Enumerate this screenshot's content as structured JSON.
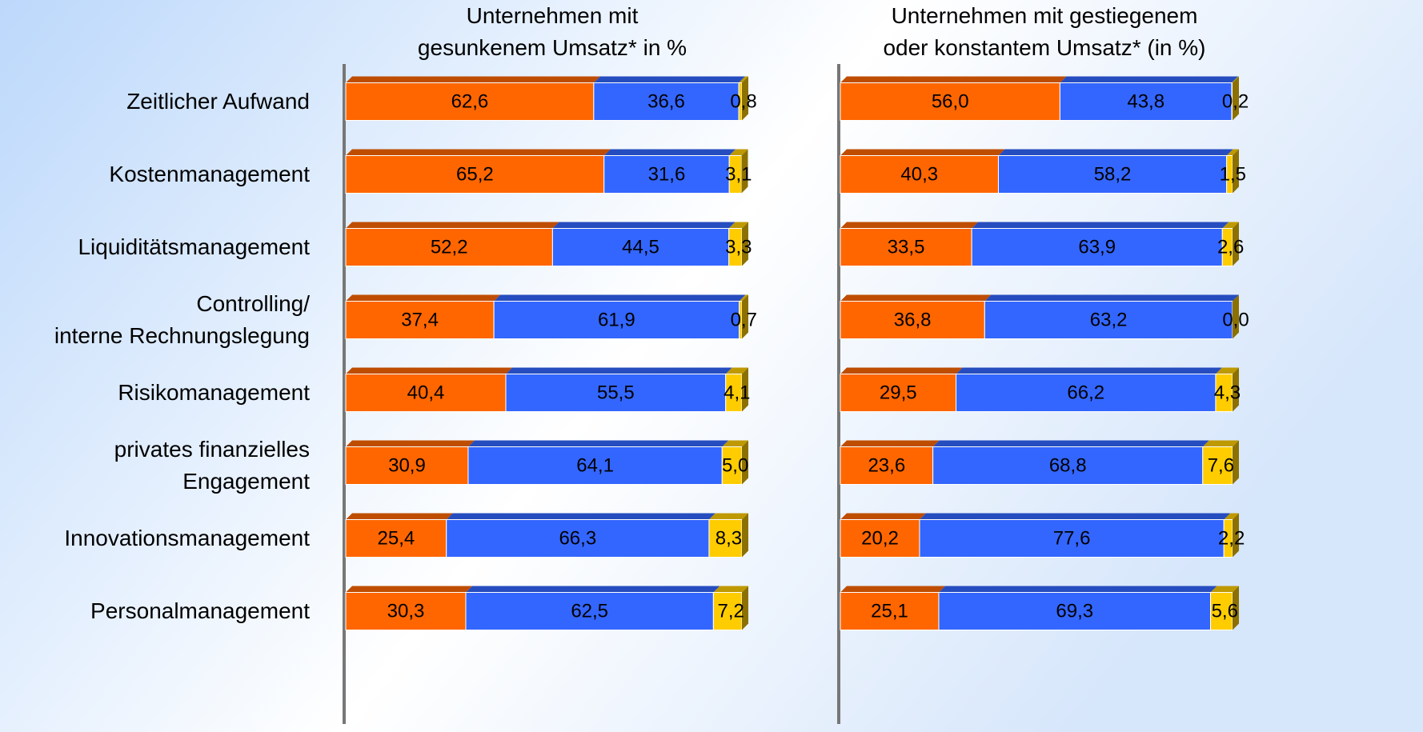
{
  "chart_data": [
    {
      "type": "stacked-bar-horizontal",
      "title": "Unternehmen mit\ngesunkenem Umsatz* in %",
      "categories": [
        "Zeitlicher Aufwand",
        "Kostenmanagement",
        "Liquiditätsmanagement",
        "Controlling/\ninterne Rechnungslegung",
        "Risikomanagement",
        "privates finanzielles\nEngagement",
        "Innovationsmanagement",
        "Personalmanagement"
      ],
      "xlim": [
        0,
        100
      ],
      "series": [
        {
          "color": "#ff6600",
          "values": [
            62.6,
            65.2,
            52.2,
            37.4,
            40.4,
            30.9,
            25.4,
            30.3
          ],
          "value_labels": [
            "62,6",
            "65,2",
            "52,2",
            "37,4",
            "40,4",
            "30,9",
            "25,4",
            "30,3"
          ]
        },
        {
          "color": "#3366ff",
          "values": [
            36.6,
            31.6,
            44.5,
            61.9,
            55.5,
            64.1,
            66.3,
            62.5
          ],
          "value_labels": [
            "36,6",
            "31,6",
            "44,5",
            "61,9",
            "55,5",
            "64,1",
            "66,3",
            "62,5"
          ]
        },
        {
          "color": "#ffcc00",
          "values": [
            0.8,
            3.1,
            3.3,
            0.7,
            4.1,
            5.0,
            8.3,
            7.2
          ],
          "value_labels": [
            "0,8",
            "3,1",
            "3,3",
            "0,7",
            "4,1",
            "5,0",
            "8,3",
            "7,2"
          ]
        }
      ]
    },
    {
      "type": "stacked-bar-horizontal",
      "title": "Unternehmen mit gestiegenem\noder konstantem Umsatz* (in %)",
      "xlim": [
        0,
        100
      ],
      "series": [
        {
          "color": "#ff6600",
          "values": [
            56.0,
            40.3,
            33.5,
            36.8,
            29.5,
            23.6,
            20.2,
            25.1
          ],
          "value_labels": [
            "56,0",
            "40,3",
            "33,5",
            "36,8",
            "29,5",
            "23,6",
            "20,2",
            "25,1"
          ]
        },
        {
          "color": "#3366ff",
          "values": [
            43.8,
            58.2,
            63.9,
            63.2,
            66.2,
            68.8,
            77.6,
            69.3
          ],
          "value_labels": [
            "43,8",
            "58,2",
            "63,9",
            "63,2",
            "66,2",
            "68,8",
            "77,6",
            "69,3"
          ]
        },
        {
          "color": "#ffcc00",
          "values": [
            0.2,
            1.5,
            2.6,
            0.0,
            4.3,
            7.6,
            2.2,
            5.6
          ],
          "value_labels": [
            "0,2",
            "1,5",
            "2,6",
            "0,0",
            "4,3",
            "7,6",
            "2,2",
            "5,6"
          ]
        }
      ]
    }
  ]
}
